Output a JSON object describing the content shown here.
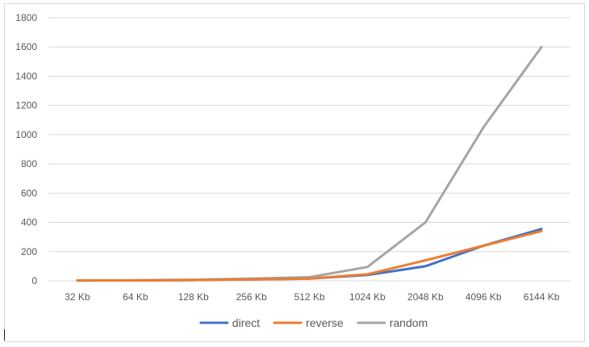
{
  "chart_data": {
    "type": "line",
    "title": "",
    "xlabel": "",
    "ylabel": "",
    "categories": [
      "32 Kb",
      "64 Kb",
      "128 Kb",
      "256 Kb",
      "512 Kb",
      "1024 Kb",
      "2048 Kb",
      "4096 Kb",
      "6144 Kb"
    ],
    "ylim": [
      0,
      1800
    ],
    "yticks": [
      0,
      200,
      400,
      600,
      800,
      1000,
      1200,
      1400,
      1600,
      1800
    ],
    "grid": true,
    "legend_position": "bottom",
    "series": [
      {
        "name": "direct",
        "color": "#4472c4",
        "values": [
          2,
          3,
          5,
          10,
          15,
          40,
          100,
          240,
          355
        ]
      },
      {
        "name": "reverse",
        "color": "#ed7d31",
        "values": [
          2,
          3,
          5,
          10,
          15,
          45,
          140,
          240,
          340
        ]
      },
      {
        "name": "random",
        "color": "#a5a5a5",
        "values": [
          2,
          4,
          8,
          15,
          25,
          95,
          400,
          1050,
          1600
        ]
      }
    ]
  }
}
